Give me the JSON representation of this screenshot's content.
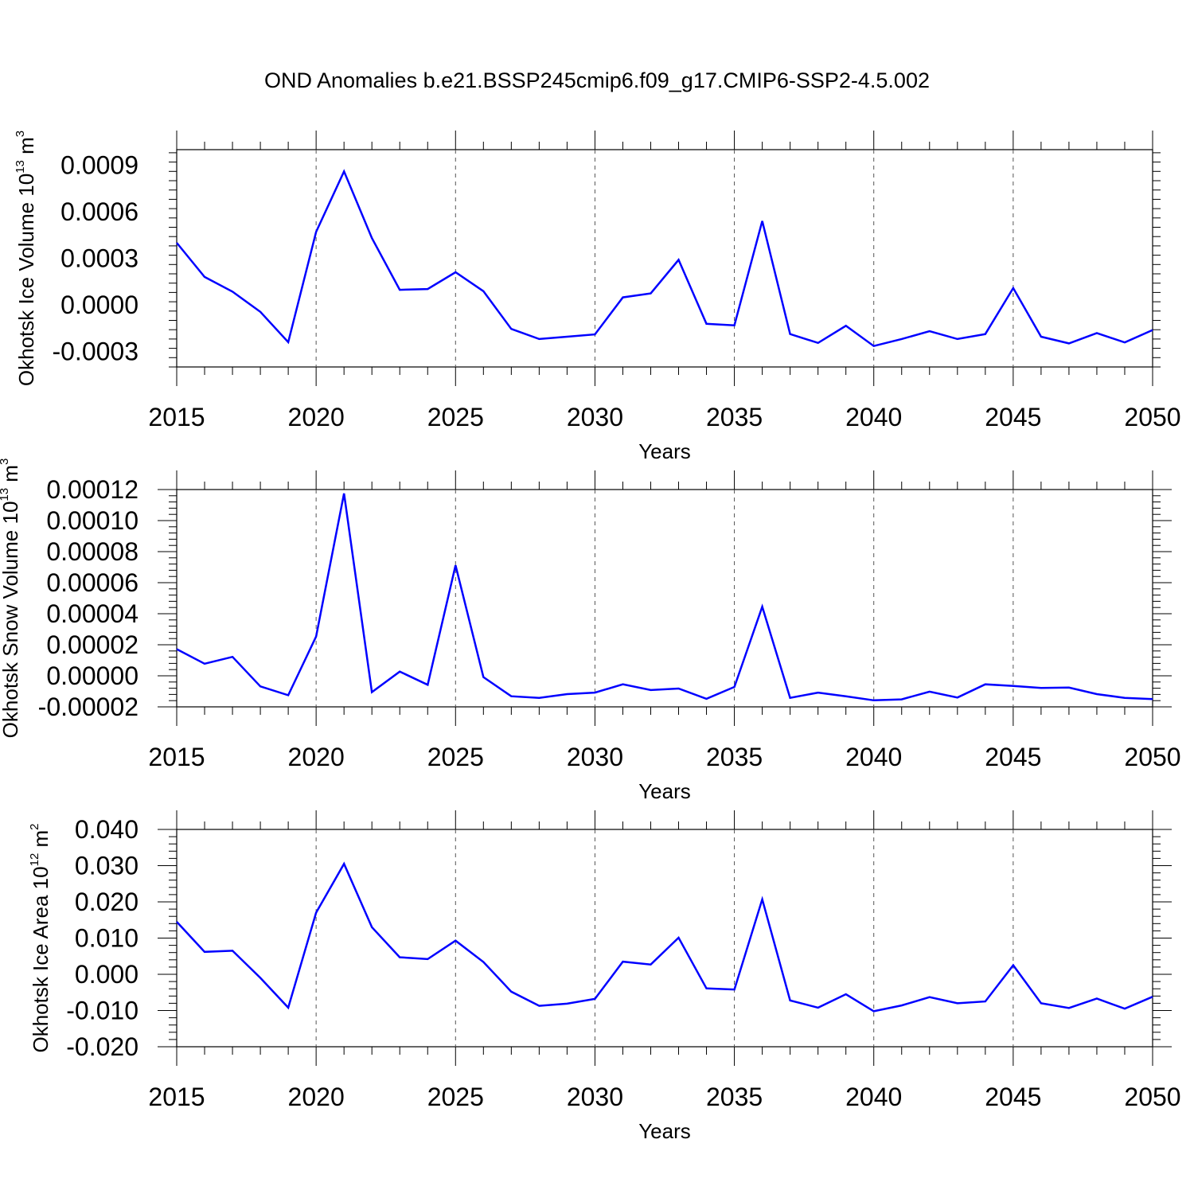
{
  "figure": {
    "title": "OND Anomalies b.e21.BSSP245cmip6.f09_g17.CMIP6-SSP2-4.5.002"
  },
  "colors": {
    "line": "#0000ff",
    "axis": "#000000",
    "grid": "#555555"
  },
  "chart_data": [
    {
      "type": "line",
      "title": "",
      "xlabel": "Years",
      "ylabel": "Okhotsk Ice Volume 10",
      "ylabel_exp": "13",
      "ylabel_unit": "m",
      "ylabel_unit_exp": "3",
      "xlim": [
        2015,
        2050
      ],
      "ylim": [
        -0.0004,
        0.001
      ],
      "xticks": [
        "2015",
        "2020",
        "2025",
        "2030",
        "2035",
        "2040",
        "2045",
        "2050"
      ],
      "yticks": [
        -0.0003,
        0.0,
        0.0003,
        0.0006,
        0.0009
      ],
      "ytick_labels": [
        "-0.0003",
        "0.0000",
        "0.0003",
        "0.0006",
        "0.0009"
      ],
      "grid": "dashed vertical at major x ticks",
      "x": [
        2015,
        2016,
        2017,
        2018,
        2019,
        2020,
        2021,
        2022,
        2023,
        2024,
        2025,
        2026,
        2027,
        2028,
        2029,
        2030,
        2031,
        2032,
        2033,
        2034,
        2035,
        2036,
        2037,
        2038,
        2039,
        2040,
        2041,
        2042,
        2043,
        2044,
        2045,
        2046,
        2047,
        2048,
        2049,
        2050
      ],
      "series": [
        {
          "values": [
            0.0004,
            0.00018,
            8.5e-05,
            -4.5e-05,
            -0.00024,
            0.00047,
            0.00086,
            0.00043,
            9.7e-05,
            0.000102,
            0.00021,
            8.8e-05,
            -0.000155,
            -0.00022,
            -0.000205,
            -0.00019,
            4.8e-05,
            7.4e-05,
            0.00029,
            -0.000122,
            -0.000132,
            0.00054,
            -0.000188,
            -0.000245,
            -0.000135,
            -0.000265,
            -0.00022,
            -0.00017,
            -0.00022,
            -0.000188,
            0.000108,
            -0.000205,
            -0.000248,
            -0.000182,
            -0.000242,
            -0.000162
          ]
        }
      ]
    },
    {
      "type": "line",
      "title": "",
      "xlabel": "Years",
      "ylabel": "Okhotsk Snow Volume 10",
      "ylabel_exp": "13",
      "ylabel_unit": "m",
      "ylabel_unit_exp": "3",
      "xlim": [
        2015,
        2050
      ],
      "ylim": [
        -2e-05,
        0.00012
      ],
      "xticks": [
        "2015",
        "2020",
        "2025",
        "2030",
        "2035",
        "2040",
        "2045",
        "2050"
      ],
      "yticks": [
        -2e-05,
        0.0,
        2e-05,
        4e-05,
        6e-05,
        8e-05,
        0.0001,
        0.00012
      ],
      "ytick_labels": [
        "-0.00002",
        "0.00000",
        "0.00002",
        "0.00004",
        "0.00006",
        "0.00008",
        "0.00010",
        "0.00012"
      ],
      "grid": "dashed vertical at major x ticks",
      "x": [
        2015,
        2016,
        2017,
        2018,
        2019,
        2020,
        2021,
        2022,
        2023,
        2024,
        2025,
        2026,
        2027,
        2028,
        2029,
        2030,
        2031,
        2032,
        2033,
        2034,
        2035,
        2036,
        2037,
        2038,
        2039,
        2040,
        2041,
        2042,
        2043,
        2044,
        2045,
        2046,
        2047,
        2048,
        2049,
        2050
      ],
      "series": [
        {
          "values": [
            1.72e-05,
            7.8e-06,
            1.22e-05,
            -6.8e-06,
            -1.25e-05,
            2.53e-05,
            0.0001175,
            -1.05e-05,
            2.7e-06,
            -5.8e-06,
            7.12e-05,
            -8e-07,
            -1.32e-05,
            -1.42e-05,
            -1.18e-05,
            -1.08e-05,
            -5.5e-06,
            -9.2e-06,
            -8.2e-06,
            -1.48e-05,
            -7.2e-06,
            4.45e-05,
            -1.42e-05,
            -1.08e-05,
            -1.32e-05,
            -1.58e-05,
            -1.52e-05,
            -1.02e-05,
            -1.4e-05,
            -5.5e-06,
            -6.5e-06,
            -7.8e-06,
            -7.6e-06,
            -1.18e-05,
            -1.42e-05,
            -1.5e-05
          ]
        }
      ]
    },
    {
      "type": "line",
      "title": "",
      "xlabel": "Years",
      "ylabel": "Okhotsk Ice Area 10",
      "ylabel_exp": "12",
      "ylabel_unit": "m",
      "ylabel_unit_exp": "2",
      "xlim": [
        2015,
        2050
      ],
      "ylim": [
        -0.02,
        0.04
      ],
      "xticks": [
        "2015",
        "2020",
        "2025",
        "2030",
        "2035",
        "2040",
        "2045",
        "2050"
      ],
      "yticks": [
        -0.02,
        -0.01,
        0.0,
        0.01,
        0.02,
        0.03,
        0.04
      ],
      "ytick_labels": [
        "-0.020",
        "-0.010",
        "0.000",
        "0.010",
        "0.020",
        "0.030",
        "0.040"
      ],
      "grid": "dashed vertical at major x ticks",
      "x": [
        2015,
        2016,
        2017,
        2018,
        2019,
        2020,
        2021,
        2022,
        2023,
        2024,
        2025,
        2026,
        2027,
        2028,
        2029,
        2030,
        2031,
        2032,
        2033,
        2034,
        2035,
        2036,
        2037,
        2038,
        2039,
        2040,
        2041,
        2042,
        2043,
        2044,
        2045,
        2046,
        2047,
        2048,
        2049,
        2050
      ],
      "series": [
        {
          "values": [
            0.0145,
            0.0062,
            0.0065,
            -0.001,
            -0.0092,
            0.017,
            0.0305,
            0.013,
            0.0047,
            0.0042,
            0.0093,
            0.0034,
            -0.0048,
            -0.0087,
            -0.0081,
            -0.0068,
            0.0035,
            0.0027,
            0.0101,
            -0.0039,
            -0.0042,
            0.0207,
            -0.0072,
            -0.0092,
            -0.0055,
            -0.0102,
            -0.0086,
            -0.0063,
            -0.008,
            -0.0075,
            0.0025,
            -0.008,
            -0.0093,
            -0.0067,
            -0.0095,
            -0.0062
          ]
        }
      ]
    }
  ]
}
